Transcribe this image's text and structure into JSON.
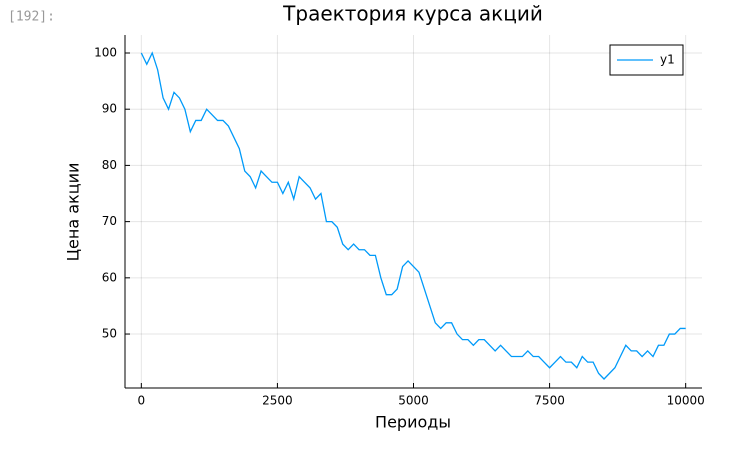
{
  "prompt": "[192]:",
  "chart_data": {
    "type": "line",
    "title": "Траектория курса акций",
    "xlabel": "Периоды",
    "ylabel": "Цена акции",
    "x": [
      0,
      100,
      200,
      300,
      400,
      500,
      600,
      700,
      800,
      900,
      1000,
      1100,
      1200,
      1300,
      1400,
      1500,
      1600,
      1700,
      1800,
      1900,
      2000,
      2100,
      2200,
      2300,
      2400,
      2500,
      2600,
      2700,
      2800,
      2900,
      3000,
      3100,
      3200,
      3300,
      3400,
      3500,
      3600,
      3700,
      3800,
      3900,
      4000,
      4100,
      4200,
      4300,
      4400,
      4500,
      4600,
      4700,
      4800,
      4900,
      5000,
      5100,
      5200,
      5300,
      5400,
      5500,
      5600,
      5700,
      5800,
      5900,
      6000,
      6100,
      6200,
      6300,
      6400,
      6500,
      6600,
      6700,
      6800,
      6900,
      7000,
      7100,
      7200,
      7300,
      7400,
      7500,
      7600,
      7700,
      7800,
      7900,
      8000,
      8100,
      8200,
      8300,
      8400,
      8500,
      8600,
      8700,
      8800,
      8900,
      9000,
      9100,
      9200,
      9300,
      9400,
      9500,
      9600,
      9700,
      9800,
      9900,
      10000
    ],
    "series": [
      {
        "name": "y1",
        "color": "#009af9",
        "values": [
          100,
          98,
          100,
          97,
          92,
          90,
          93,
          92,
          90,
          86,
          88,
          88,
          90,
          89,
          88,
          88,
          87,
          85,
          83,
          79,
          78,
          76,
          79,
          78,
          77,
          77,
          75,
          77,
          74,
          78,
          77,
          76,
          74,
          75,
          70,
          70,
          69,
          66,
          65,
          66,
          65,
          65,
          64,
          64,
          60,
          57,
          57,
          58,
          62,
          63,
          62,
          61,
          58,
          55,
          52,
          51,
          52,
          52,
          50,
          49,
          49,
          48,
          49,
          49,
          48,
          47,
          48,
          47,
          46,
          46,
          46,
          47,
          46,
          46,
          45,
          44,
          45,
          46,
          45,
          45,
          44,
          46,
          45,
          45,
          43,
          42,
          43,
          44,
          46,
          48,
          47,
          47,
          46,
          47,
          46,
          48,
          48,
          50,
          50,
          51,
          51
        ]
      }
    ],
    "xlim": [
      -300,
      10300
    ],
    "ylim": [
      40.4,
      103.2
    ],
    "xticks": [
      0,
      2500,
      5000,
      7500,
      10000
    ],
    "yticks": [
      50,
      60,
      70,
      80,
      90,
      100
    ],
    "grid": true,
    "legend": "top-right"
  }
}
